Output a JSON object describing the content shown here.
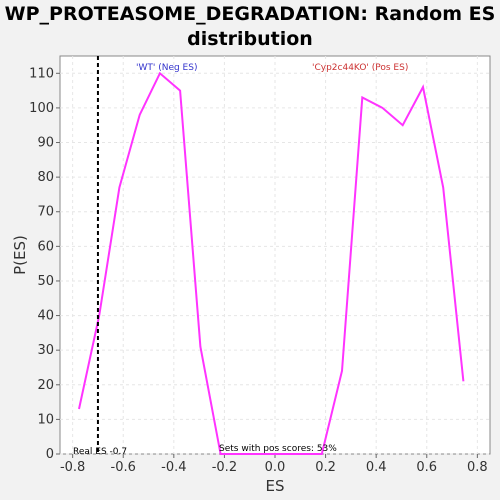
{
  "chart_data": {
    "type": "line",
    "title": "WP_PROTEASOME_DEGRADATION: Random ES distribution",
    "xlabel": "ES",
    "ylabel": "P(ES)",
    "xlim": [
      -0.85,
      0.85
    ],
    "ylim": [
      0,
      115
    ],
    "xticks": [
      -0.8,
      -0.6,
      -0.4,
      -0.2,
      0.0,
      0.2,
      0.4,
      0.6,
      0.8
    ],
    "xtick_labels": [
      "-0.8",
      "-0.6",
      "-0.4",
      "-0.2",
      "0.0",
      "0.2",
      "0.4",
      "0.6",
      "0.8"
    ],
    "yticks": [
      0,
      10,
      20,
      30,
      40,
      50,
      60,
      70,
      80,
      90,
      100,
      110
    ],
    "grid": true,
    "series": [
      {
        "color": "#ff33ff",
        "x": [
          -0.775,
          -0.695,
          -0.615,
          -0.535,
          -0.455,
          -0.375,
          -0.295,
          -0.215,
          -0.135,
          -0.055,
          0.025,
          0.105,
          0.185,
          0.265,
          0.345,
          0.425,
          0.505,
          0.585,
          0.665,
          0.745
        ],
        "y": [
          13,
          40,
          77,
          98,
          110,
          105,
          31,
          0,
          0,
          0,
          0,
          0,
          0,
          24,
          103,
          100,
          95,
          106,
          77,
          21
        ]
      }
    ],
    "real_es": -0.7,
    "annotations": {
      "neg_label": "'WT' (Neg ES)",
      "pos_label": "'Cyp2c44KO' (Pos ES)",
      "real_es_label": "Real ES -0.7",
      "pos_scores_label": "Sets with pos scores: 53%"
    },
    "colors": {
      "neg": "#3333cc",
      "pos": "#cc3333",
      "line": "#ff33ff",
      "grid": "#e6e6e6"
    }
  }
}
